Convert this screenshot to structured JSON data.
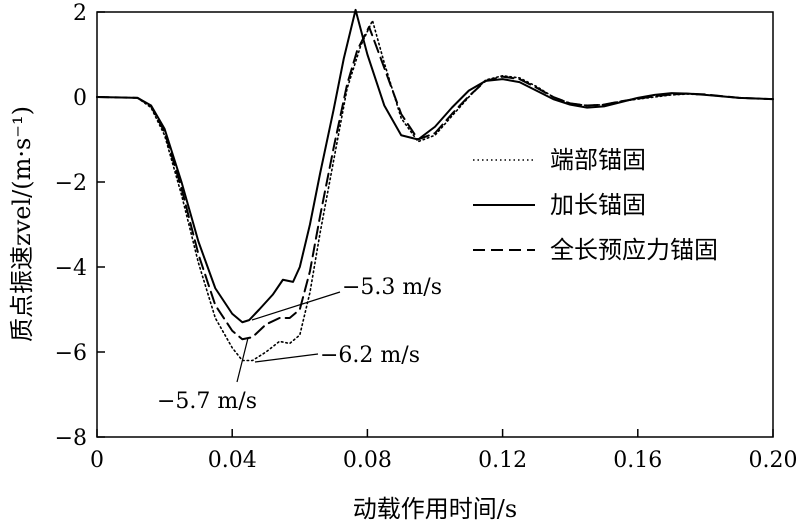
{
  "chart_data": {
    "type": "line",
    "xlabel": "动载作用时间/s",
    "ylabel": "质点振速zvel/(m·s⁻¹)",
    "xlim": [
      0,
      0.2
    ],
    "ylim": [
      -8,
      2
    ],
    "xticks": [
      0,
      0.04,
      0.08,
      0.12,
      0.16,
      0.2
    ],
    "xtick_labels": [
      "0",
      "0.04",
      "0.08",
      "0.12",
      "0.16",
      "0.20"
    ],
    "yticks": [
      2,
      0,
      -2,
      -4,
      -6,
      -8
    ],
    "ytick_labels": [
      "2",
      "0",
      "−2",
      "−4",
      "−6",
      "−8"
    ],
    "grid": false,
    "legend_position": "right",
    "series": [
      {
        "name": "端部锚固",
        "style": "dotted",
        "x": [
          0,
          0.012,
          0.016,
          0.02,
          0.025,
          0.03,
          0.035,
          0.04,
          0.043,
          0.046,
          0.05,
          0.054,
          0.057,
          0.06,
          0.063,
          0.066,
          0.07,
          0.074,
          0.078,
          0.0815,
          0.085,
          0.09,
          0.095,
          0.1,
          0.105,
          0.11,
          0.115,
          0.12,
          0.125,
          0.13,
          0.135,
          0.14,
          0.145,
          0.15,
          0.155,
          0.16,
          0.165,
          0.17,
          0.175,
          0.18,
          0.19,
          0.2
        ],
        "y": [
          0,
          -0.02,
          -0.25,
          -0.9,
          -2.3,
          -3.9,
          -5.2,
          -5.9,
          -6.2,
          -6.2,
          -6.0,
          -5.75,
          -5.8,
          -5.6,
          -4.6,
          -3.2,
          -1.5,
          0.2,
          1.2,
          1.8,
          0.8,
          -0.5,
          -1.05,
          -0.9,
          -0.45,
          0.0,
          0.4,
          0.5,
          0.45,
          0.25,
          0.0,
          -0.15,
          -0.2,
          -0.18,
          -0.1,
          -0.05,
          0.0,
          0.05,
          0.07,
          0.05,
          -0.02,
          -0.05
        ]
      },
      {
        "name": "加长锚固",
        "style": "solid",
        "x": [
          0,
          0.012,
          0.016,
          0.02,
          0.025,
          0.03,
          0.035,
          0.04,
          0.043,
          0.045,
          0.048,
          0.052,
          0.055,
          0.058,
          0.06,
          0.063,
          0.066,
          0.07,
          0.073,
          0.0765,
          0.08,
          0.085,
          0.09,
          0.095,
          0.1,
          0.105,
          0.11,
          0.115,
          0.12,
          0.125,
          0.13,
          0.135,
          0.14,
          0.145,
          0.15,
          0.155,
          0.16,
          0.165,
          0.17,
          0.175,
          0.18,
          0.19,
          0.2
        ],
        "y": [
          0,
          -0.02,
          -0.2,
          -0.75,
          -2.0,
          -3.4,
          -4.5,
          -5.1,
          -5.3,
          -5.25,
          -5.0,
          -4.65,
          -4.3,
          -4.35,
          -4.0,
          -3.0,
          -1.8,
          -0.3,
          0.9,
          2.05,
          1.0,
          -0.2,
          -0.9,
          -1.0,
          -0.7,
          -0.25,
          0.15,
          0.38,
          0.42,
          0.35,
          0.15,
          -0.05,
          -0.18,
          -0.25,
          -0.22,
          -0.12,
          -0.02,
          0.05,
          0.09,
          0.08,
          0.05,
          -0.02,
          -0.05
        ]
      },
      {
        "name": "全长预应力锚固",
        "style": "dashed",
        "x": [
          0,
          0.012,
          0.016,
          0.02,
          0.025,
          0.03,
          0.035,
          0.04,
          0.043,
          0.046,
          0.05,
          0.054,
          0.057,
          0.06,
          0.063,
          0.066,
          0.07,
          0.074,
          0.077,
          0.0805,
          0.084,
          0.09,
          0.095,
          0.1,
          0.105,
          0.11,
          0.115,
          0.12,
          0.125,
          0.13,
          0.135,
          0.14,
          0.145,
          0.15,
          0.155,
          0.16,
          0.165,
          0.17,
          0.175,
          0.18,
          0.19,
          0.2
        ],
        "y": [
          0,
          -0.02,
          -0.22,
          -0.82,
          -2.15,
          -3.7,
          -4.9,
          -5.5,
          -5.7,
          -5.65,
          -5.35,
          -5.2,
          -5.2,
          -5.0,
          -4.1,
          -2.8,
          -1.2,
          0.3,
          1.1,
          1.65,
          0.9,
          -0.4,
          -1.0,
          -0.85,
          -0.4,
          0.02,
          0.38,
          0.48,
          0.42,
          0.22,
          0.0,
          -0.15,
          -0.2,
          -0.18,
          -0.1,
          -0.04,
          0.02,
          0.06,
          0.08,
          0.06,
          -0.02,
          -0.05
        ]
      }
    ],
    "annotations": [
      {
        "text": "−5.3 m/s",
        "x": 0.045,
        "y": -5.3
      },
      {
        "text": "−6.2 m/s",
        "x": 0.047,
        "y": -6.2
      },
      {
        "text": "−5.7 m/s",
        "x": 0.044,
        "y": -5.7
      }
    ]
  }
}
